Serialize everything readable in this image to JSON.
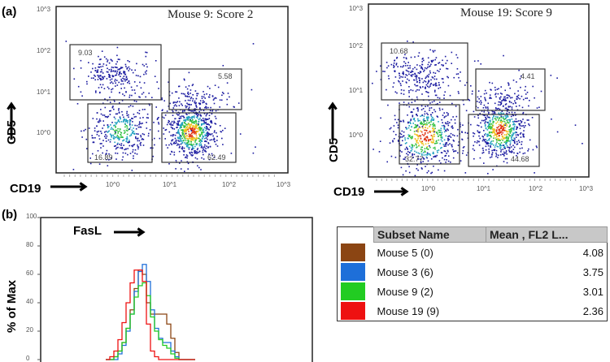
{
  "panels": {
    "a": "(a)",
    "b": "(b)"
  },
  "chart_data": [
    {
      "type": "scatter",
      "title": "Mouse 9: Score 2",
      "xlabel": "CD19",
      "ylabel": "CD5",
      "x_scale": "log",
      "y_scale": "log",
      "xlim": [
        0.3,
        1000
      ],
      "ylim": [
        0.1,
        1000
      ],
      "x_ticks": [
        "10^0",
        "10^1",
        "10^2",
        "10^3"
      ],
      "y_ticks": [
        "10^0",
        "10^1",
        "10^2",
        "10^3"
      ],
      "gates": [
        {
          "value": "9.03"
        },
        {
          "value": "16.89"
        },
        {
          "value": "5.58"
        },
        {
          "value": "62.49"
        }
      ]
    },
    {
      "type": "scatter",
      "title": "Mouse 19: Score 9",
      "xlabel": "CD19",
      "ylabel": "CD5",
      "x_scale": "log",
      "y_scale": "log",
      "xlim": [
        0.2,
        1000
      ],
      "ylim": [
        0.1,
        1000
      ],
      "x_ticks": [
        "10^0",
        "10^1",
        "10^2",
        "10^3"
      ],
      "y_ticks": [
        "10^0",
        "10^1",
        "10^2",
        "10^3"
      ],
      "gates": [
        {
          "value": "10.68"
        },
        {
          "value": "32.77"
        },
        {
          "value": "4.41"
        },
        {
          "value": "44.68"
        }
      ]
    },
    {
      "type": "line",
      "subtype": "step-histogram",
      "xlabel": "FasL",
      "ylabel": "% of Max",
      "ylim": [
        0,
        100
      ],
      "y_ticks": [
        "0",
        "20",
        "40",
        "60",
        "80",
        "100"
      ],
      "legend_position": "right",
      "legend_headers": [
        "Subset Name",
        "Mean , FL2 L..."
      ],
      "series": [
        {
          "name": "Mouse 5 (0)",
          "mean": "4.08",
          "color": "#8b4513",
          "values": [
            0,
            0,
            2,
            6,
            12,
            22,
            35,
            50,
            63,
            60,
            40,
            32,
            32,
            32,
            32,
            25,
            15,
            5,
            0,
            0,
            0,
            0
          ]
        },
        {
          "name": "Mouse 3 (6)",
          "mean": "3.75",
          "color": "#1e6fd9",
          "values": [
            0,
            0,
            0,
            4,
            10,
            20,
            32,
            48,
            62,
            67,
            55,
            35,
            22,
            15,
            12,
            12,
            6,
            2,
            0,
            0,
            0,
            0
          ]
        },
        {
          "name": "Mouse 9 (2)",
          "mean": "3.01",
          "color": "#22cc22",
          "values": [
            0,
            0,
            2,
            6,
            12,
            22,
            32,
            44,
            52,
            54,
            45,
            30,
            20,
            14,
            10,
            8,
            4,
            1,
            0,
            0,
            0,
            0
          ]
        },
        {
          "name": "Mouse 19 (9)",
          "mean": "2.36",
          "color": "#ee1111",
          "values": [
            0,
            2,
            6,
            14,
            26,
            40,
            54,
            63,
            63,
            55,
            25,
            6,
            2,
            0,
            0,
            0,
            0,
            0,
            0,
            0,
            0,
            0
          ]
        }
      ]
    }
  ]
}
